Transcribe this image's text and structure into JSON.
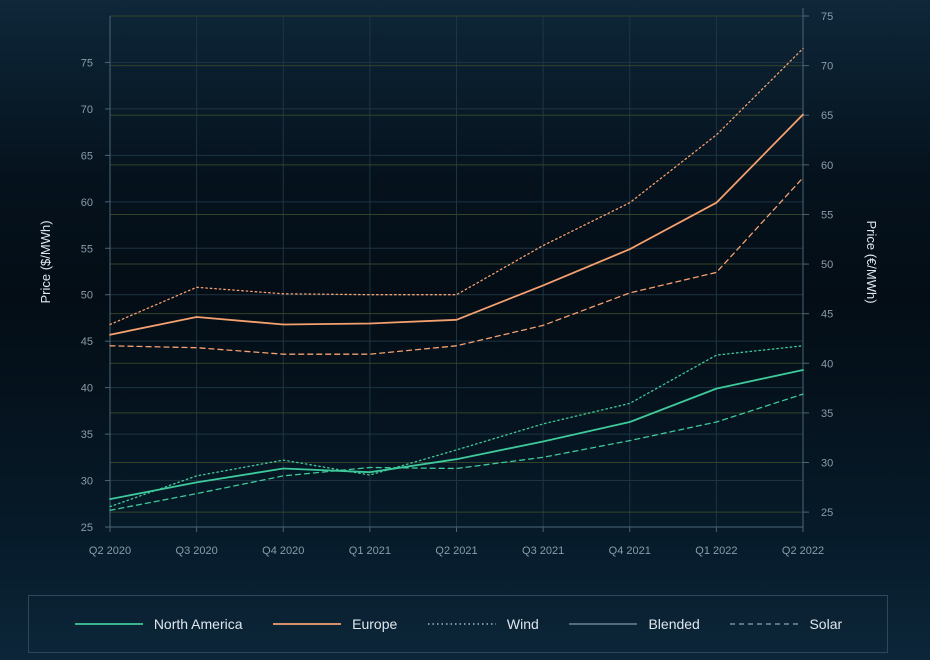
{
  "chart_data": {
    "type": "line",
    "x": [
      "Q2 2020",
      "Q3 2020",
      "Q4 2020",
      "Q1 2021",
      "Q2 2021",
      "Q3 2021",
      "Q4 2021",
      "Q1 2022",
      "Q2 2022"
    ],
    "ylabel": "Price ($/MWh)",
    "ylabel_right": "Price (€/MWh)",
    "ylim": [
      25,
      80
    ],
    "yticks": [
      25,
      30,
      35,
      40,
      45,
      50,
      55,
      60,
      65,
      70,
      75
    ],
    "ylim_right": [
      23.5,
      75
    ],
    "yticks_right": [
      25,
      30,
      35,
      40,
      45,
      50,
      55,
      60,
      65,
      70,
      75
    ],
    "grid": true,
    "legend_position": "bottom",
    "series": [
      {
        "name": "North America",
        "legend_key": "north_america",
        "color": "#3ec99a",
        "style": "solid",
        "values": [
          28.0,
          29.8,
          31.3,
          30.9,
          32.3,
          34.2,
          36.3,
          39.9,
          41.9
        ]
      },
      {
        "legend_key": "north_america_wind",
        "color": "#3ec99a",
        "style": "dotted",
        "values": [
          27.2,
          30.5,
          32.2,
          30.6,
          33.3,
          36.1,
          38.3,
          43.5,
          44.5
        ]
      },
      {
        "legend_key": "north_america_solar",
        "color": "#3ec99a",
        "style": "dashed",
        "values": [
          26.8,
          28.6,
          30.5,
          31.4,
          31.3,
          32.5,
          34.3,
          36.3,
          39.3
        ]
      },
      {
        "name": "Europe",
        "legend_key": "europe",
        "color": "#f4a06f",
        "style": "solid",
        "values": [
          45.7,
          47.6,
          46.8,
          46.9,
          47.3,
          51.0,
          54.9,
          59.9,
          69.4
        ]
      },
      {
        "legend_key": "europe_wind",
        "color": "#f4a06f",
        "style": "dotted",
        "values": [
          46.8,
          50.8,
          50.1,
          50.0,
          50.0,
          55.3,
          59.9,
          67.2,
          76.5
        ]
      },
      {
        "legend_key": "europe_solar",
        "color": "#f4a06f",
        "style": "dashed",
        "values": [
          44.5,
          44.3,
          43.6,
          43.6,
          44.5,
          46.7,
          50.2,
          52.4,
          62.6
        ]
      }
    ],
    "legend": [
      {
        "key": "north_america",
        "label": "North America",
        "color": "#3ec99a",
        "style": "solid"
      },
      {
        "key": "europe",
        "label": "Europe",
        "color": "#f4a06f",
        "style": "solid"
      },
      {
        "key": "wind",
        "label": "Wind",
        "color": "#c9d6df",
        "style": "dotted"
      },
      {
        "key": "blended",
        "label": "Blended",
        "color": "#5f7687",
        "style": "solid"
      },
      {
        "key": "solar",
        "label": "Solar",
        "color": "#8aa3b3",
        "style": "dashed"
      }
    ],
    "colors": {
      "grid": "#1e3443",
      "grid_right": "#33432a",
      "axis": "#4a6577"
    }
  }
}
